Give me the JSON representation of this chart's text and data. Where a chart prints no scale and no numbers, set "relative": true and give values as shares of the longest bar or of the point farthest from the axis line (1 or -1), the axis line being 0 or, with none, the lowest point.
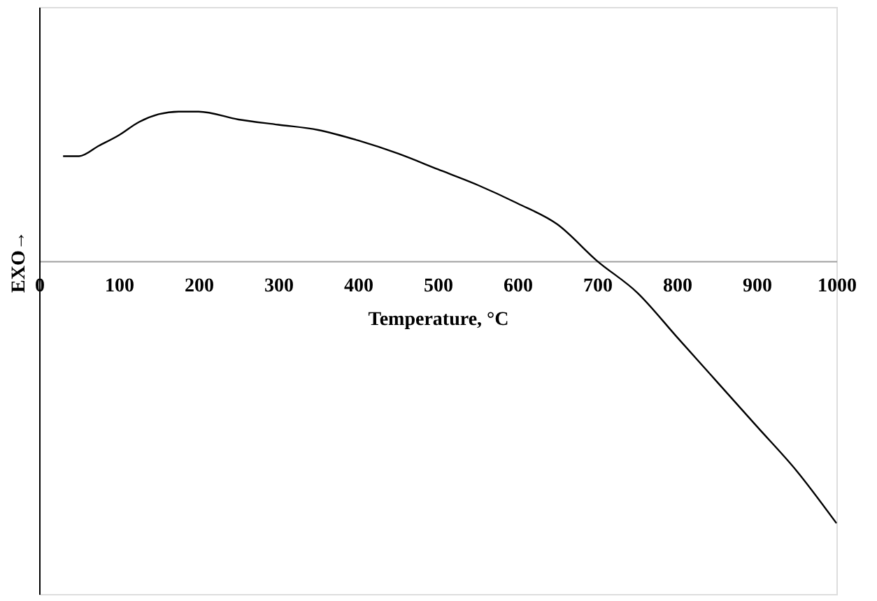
{
  "chart_data": {
    "type": "line",
    "xlabel": "Temperature, °C",
    "ylabel": "EXO→",
    "relative": true,
    "x": [
      30,
      50,
      75,
      100,
      125,
      150,
      175,
      200,
      250,
      300,
      350,
      400,
      450,
      500,
      550,
      600,
      650,
      700,
      750,
      800,
      850,
      900,
      950,
      1000
    ],
    "series": [
      {
        "color": "#000000",
        "values": [
          0.4,
          0.4,
          0.44,
          0.48,
          0.53,
          0.56,
          0.57,
          0.57,
          0.54,
          0.52,
          0.5,
          0.46,
          0.41,
          0.35,
          0.29,
          0.22,
          0.14,
          0.0,
          -0.12,
          -0.29,
          -0.46,
          -0.63,
          -0.8,
          -1.0
        ]
      }
    ],
    "xlim": [
      0,
      1000
    ],
    "xticks": [
      0,
      100,
      200,
      300,
      400,
      500,
      600,
      700,
      800,
      900,
      1000
    ]
  }
}
